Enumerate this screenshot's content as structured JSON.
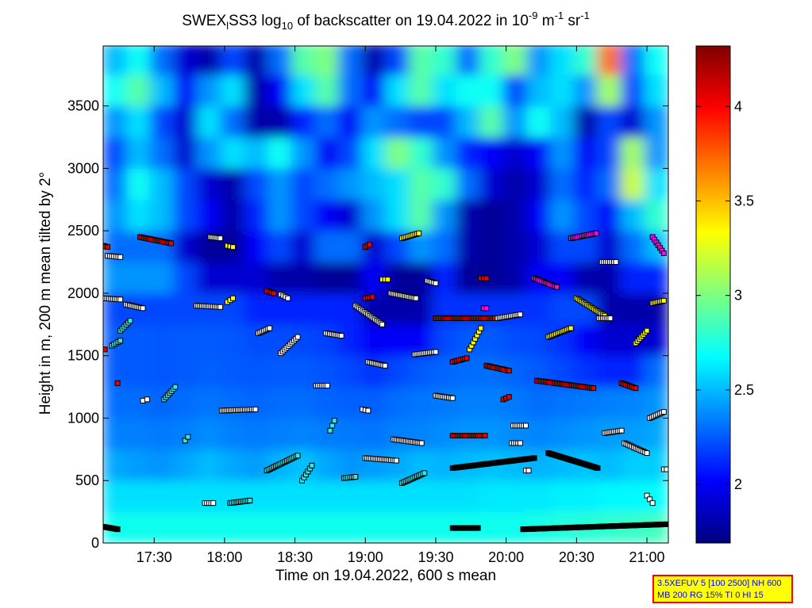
{
  "title": {
    "p1": "SWEX",
    "sub1": "l",
    "p2": "SS3 log",
    "sub2": "10",
    "p3": " of backscatter on 19.04.2022 in 10",
    "sup1": "-9",
    "p4": " m",
    "sup2": "-1",
    "p5": " sr",
    "sup3": "-1"
  },
  "infobox": {
    "line1": "3.5XEFUV 5 [100 2500] NH 600",
    "line2": "MB 200 RG 15% TI 0 HI 15"
  },
  "chart_data": {
    "type": "heatmap",
    "xlabel": "Time on 19.04.2022, 600 s mean",
    "ylabel": "Height in m, 200 m mean tilted by 2°",
    "xlim_hours": [
      17.138,
      21.152
    ],
    "ylim": [
      0,
      3980
    ],
    "xticks": [
      {
        "v": 17.5,
        "label": "17:30"
      },
      {
        "v": 18.0,
        "label": "18:00"
      },
      {
        "v": 18.5,
        "label": "18:30"
      },
      {
        "v": 19.0,
        "label": "19:00"
      },
      {
        "v": 19.5,
        "label": "19:30"
      },
      {
        "v": 20.0,
        "label": "20:00"
      },
      {
        "v": 20.5,
        "label": "20:30"
      },
      {
        "v": 21.0,
        "label": "21:00"
      }
    ],
    "yticks": [
      0,
      500,
      1000,
      1500,
      2000,
      2500,
      3000,
      3500
    ],
    "colorbar": {
      "clim": [
        1.69,
        4.32
      ],
      "ticks": [
        2,
        2.5,
        3,
        3.5,
        4
      ],
      "tick_labels": [
        "2",
        "2.5",
        "3",
        "3.5",
        "4"
      ],
      "colormap": "jet"
    },
    "grid_time_step_hours": 0.1672,
    "grid_height_step_m": 250,
    "grid_rows_bottom_to_top": [
      [
        2.72,
        2.72,
        2.72,
        2.72,
        2.72,
        2.72,
        2.72,
        2.72,
        2.72,
        2.72,
        2.72,
        2.72,
        2.72,
        2.72,
        2.72,
        2.72,
        2.72,
        2.72,
        2.74,
        2.76,
        2.78,
        2.8,
        2.82,
        2.84
      ],
      [
        2.6,
        2.6,
        2.6,
        2.6,
        2.6,
        2.6,
        2.6,
        2.6,
        2.6,
        2.6,
        2.6,
        2.6,
        2.6,
        2.6,
        2.6,
        2.6,
        2.62,
        2.62,
        2.62,
        2.64,
        2.64,
        2.66,
        2.66,
        2.68
      ],
      [
        2.45,
        2.42,
        2.4,
        2.45,
        2.5,
        2.45,
        2.42,
        2.48,
        2.52,
        2.45,
        2.4,
        2.42,
        2.45,
        2.5,
        2.48,
        2.5,
        2.52,
        2.5,
        2.48,
        2.5,
        2.52,
        2.5,
        2.55,
        2.55
      ],
      [
        2.35,
        2.35,
        2.33,
        2.35,
        2.38,
        2.35,
        2.33,
        2.35,
        2.36,
        2.34,
        2.33,
        2.32,
        2.35,
        2.36,
        2.38,
        2.4,
        2.4,
        2.38,
        2.36,
        2.38,
        2.4,
        2.42,
        2.42,
        2.45
      ],
      [
        2.3,
        2.3,
        2.28,
        2.3,
        2.32,
        2.3,
        2.28,
        2.3,
        2.3,
        2.28,
        2.27,
        2.26,
        2.3,
        2.32,
        2.33,
        2.35,
        2.35,
        2.33,
        2.3,
        2.32,
        2.33,
        2.35,
        2.36,
        2.4
      ],
      [
        2.25,
        2.25,
        2.24,
        2.25,
        2.26,
        2.25,
        2.24,
        2.25,
        2.25,
        2.23,
        2.2,
        2.15,
        2.2,
        2.25,
        2.28,
        2.3,
        2.3,
        2.28,
        2.25,
        2.2,
        2.15,
        2.1,
        2.1,
        2.3
      ],
      [
        2.25,
        2.25,
        2.24,
        2.25,
        2.25,
        2.24,
        2.22,
        2.22,
        2.2,
        2.18,
        2.1,
        2.0,
        2.0,
        2.0,
        2.2,
        2.25,
        2.25,
        2.22,
        2.2,
        2.15,
        2.0,
        1.9,
        1.9,
        1.9
      ],
      [
        2.2,
        2.2,
        2.2,
        2.2,
        2.2,
        2.2,
        2.1,
        2.1,
        2.1,
        2.1,
        2.1,
        1.8,
        1.8,
        1.8,
        2.15,
        2.15,
        2.15,
        2.15,
        2.15,
        2.2,
        2.2,
        1.8,
        1.8,
        1.8
      ],
      [
        2.4,
        2.4,
        2.4,
        2.2,
        1.9,
        1.9,
        1.9,
        1.8,
        1.8,
        1.75,
        1.75,
        2.0,
        1.75,
        1.75,
        2.1,
        1.75,
        1.75,
        1.8,
        2.0,
        2.0,
        1.8,
        1.8,
        2.1,
        2.1
      ],
      [
        2.3,
        2.3,
        2.3,
        1.9,
        1.75,
        1.75,
        2.0,
        2.2,
        1.9,
        2.3,
        2.3,
        1.9,
        2.2,
        2.4,
        2.3,
        1.8,
        1.75,
        1.8,
        1.9,
        2.2,
        2.2,
        1.9,
        2.3,
        2.5
      ],
      [
        2.4,
        2.6,
        2.5,
        2.2,
        2.0,
        1.8,
        2.1,
        2.4,
        2.2,
        2.0,
        1.9,
        2.4,
        2.6,
        2.9,
        2.4,
        1.8,
        1.75,
        1.8,
        2.0,
        2.4,
        2.2,
        2.0,
        2.5,
        2.8
      ],
      [
        2.3,
        2.7,
        2.5,
        2.2,
        1.9,
        1.8,
        2.2,
        2.4,
        2.2,
        2.3,
        2.4,
        2.5,
        2.6,
        2.9,
        2.8,
        2.3,
        1.9,
        1.8,
        1.9,
        2.3,
        2.1,
        2.3,
        3.2,
        2.6
      ],
      [
        2.2,
        2.5,
        2.3,
        1.9,
        2.4,
        2.6,
        2.5,
        2.7,
        2.4,
        2.0,
        2.2,
        2.6,
        3.0,
        2.8,
        2.4,
        2.1,
        2.0,
        1.9,
        2.0,
        2.4,
        2.0,
        2.2,
        3.1,
        2.4
      ],
      [
        2.4,
        2.6,
        2.2,
        1.9,
        2.6,
        2.3,
        1.8,
        1.8,
        2.1,
        2.3,
        2.0,
        2.4,
        2.3,
        2.2,
        2.2,
        2.5,
        2.9,
        2.4,
        2.7,
        2.5,
        1.8,
        2.2,
        1.9,
        2.4
      ],
      [
        2.7,
        2.9,
        2.5,
        2.0,
        2.4,
        2.6,
        1.8,
        2.0,
        2.6,
        2.9,
        2.3,
        2.0,
        2.6,
        2.9,
        2.6,
        2.7,
        2.7,
        2.2,
        2.5,
        2.6,
        2.4,
        3.1,
        2.2,
        2.6
      ],
      [
        2.5,
        2.7,
        2.3,
        1.9,
        1.8,
        2.2,
        1.8,
        2.3,
        2.9,
        3.0,
        2.3,
        1.8,
        2.2,
        2.9,
        2.8,
        2.3,
        2.8,
        3.0,
        2.4,
        2.6,
        2.8,
        3.7,
        2.3,
        2.7
      ]
    ],
    "marker_colors": {
      "w": "#ffffff",
      "c": "#33e6e6",
      "r": "#e60000",
      "y": "#ffff00",
      "m": "#ff00ff",
      "k": "#000000"
    },
    "layer_markers": [
      [
        17.14,
        17.17,
        2380,
        2370,
        "r"
      ],
      [
        17.17,
        17.26,
        2300,
        2290,
        "w"
      ],
      [
        17.4,
        17.62,
        2450,
        2400,
        "r"
      ],
      [
        17.14,
        17.26,
        1960,
        1950,
        "w"
      ],
      [
        17.3,
        17.42,
        1910,
        1880,
        "w"
      ],
      [
        17.26,
        17.33,
        1700,
        1780,
        "c"
      ],
      [
        17.2,
        17.26,
        1580,
        1620,
        "c"
      ],
      [
        17.15,
        17.16,
        1550,
        1550,
        "r"
      ],
      [
        17.24,
        17.24,
        1280,
        1280,
        "r"
      ],
      [
        17.9,
        17.97,
        2450,
        2440,
        "w"
      ],
      [
        18.02,
        18.06,
        2380,
        2370,
        "y"
      ],
      [
        17.8,
        17.97,
        1900,
        1890,
        "w"
      ],
      [
        18.02,
        18.06,
        1930,
        1960,
        "y"
      ],
      [
        17.57,
        17.65,
        1150,
        1250,
        "c"
      ],
      [
        17.42,
        17.45,
        1140,
        1150,
        "w"
      ],
      [
        17.72,
        17.74,
        820,
        850,
        "c"
      ],
      [
        17.98,
        18.22,
        1060,
        1070,
        "w"
      ],
      [
        18.04,
        18.18,
        320,
        340,
        "c"
      ],
      [
        17.86,
        17.92,
        320,
        320,
        "w"
      ],
      [
        18.3,
        18.52,
        580,
        700,
        "c"
      ],
      [
        18.55,
        18.62,
        500,
        620,
        "c"
      ],
      [
        18.85,
        18.93,
        520,
        530,
        "c"
      ],
      [
        18.3,
        18.35,
        2020,
        2000,
        "r"
      ],
      [
        18.4,
        18.45,
        1990,
        1960,
        "w"
      ],
      [
        18.24,
        18.32,
        1680,
        1720,
        "w"
      ],
      [
        18.4,
        18.52,
        1520,
        1650,
        "w"
      ],
      [
        18.65,
        18.73,
        1260,
        1260,
        "w"
      ],
      [
        18.75,
        18.78,
        900,
        980,
        "c"
      ],
      [
        18.72,
        18.83,
        1680,
        1660,
        "w"
      ],
      [
        19.0,
        19.03,
        2370,
        2390,
        "r"
      ],
      [
        19.0,
        19.05,
        1960,
        1970,
        "r"
      ],
      [
        18.93,
        19.12,
        1900,
        1750,
        "w"
      ],
      [
        19.02,
        19.14,
        1450,
        1420,
        "w"
      ],
      [
        18.98,
        19.02,
        1070,
        1060,
        "w"
      ],
      [
        19.0,
        19.22,
        680,
        660,
        "w"
      ],
      [
        19.26,
        19.42,
        480,
        560,
        "c"
      ],
      [
        19.2,
        19.4,
        830,
        800,
        "w"
      ],
      [
        19.26,
        19.38,
        2440,
        2480,
        "y"
      ],
      [
        19.12,
        19.16,
        2110,
        2110,
        "y"
      ],
      [
        19.18,
        19.36,
        2000,
        1960,
        "w"
      ],
      [
        19.44,
        19.5,
        2100,
        2080,
        "w"
      ],
      [
        19.5,
        19.92,
        1800,
        1800,
        "r"
      ],
      [
        19.35,
        19.5,
        1510,
        1530,
        "w"
      ],
      [
        19.5,
        19.62,
        1180,
        1160,
        "w"
      ],
      [
        19.62,
        19.72,
        1450,
        1480,
        "r"
      ],
      [
        19.74,
        19.82,
        1550,
        1720,
        "y"
      ],
      [
        19.62,
        19.85,
        860,
        860,
        "r"
      ],
      [
        19.62,
        20.2,
        600,
        680,
        "k"
      ],
      [
        19.82,
        19.86,
        2120,
        2120,
        "r"
      ],
      [
        19.84,
        19.86,
        1880,
        1880,
        "m"
      ],
      [
        19.86,
        20.02,
        1420,
        1380,
        "r"
      ],
      [
        19.94,
        20.1,
        1800,
        1830,
        "w"
      ],
      [
        20.05,
        20.14,
        940,
        940,
        "w"
      ],
      [
        20.04,
        20.1,
        800,
        800,
        "w"
      ],
      [
        20.14,
        20.16,
        580,
        580,
        "w"
      ],
      [
        19.98,
        20.02,
        1150,
        1170,
        "r"
      ],
      [
        20.2,
        20.36,
        2120,
        2050,
        "m"
      ],
      [
        20.3,
        20.65,
        720,
        600,
        "k"
      ],
      [
        20.22,
        20.62,
        1300,
        1240,
        "r"
      ],
      [
        20.3,
        20.46,
        1650,
        1720,
        "y"
      ],
      [
        20.46,
        20.64,
        2440,
        2480,
        "m"
      ],
      [
        20.5,
        20.7,
        1960,
        1820,
        "y"
      ],
      [
        20.66,
        20.74,
        1800,
        1800,
        "w"
      ],
      [
        20.68,
        20.78,
        2250,
        2250,
        "w"
      ],
      [
        20.7,
        20.82,
        880,
        900,
        "w"
      ],
      [
        20.84,
        21.0,
        800,
        720,
        "w"
      ],
      [
        20.82,
        20.92,
        1280,
        1240,
        "r"
      ],
      [
        20.92,
        21.0,
        1600,
        1700,
        "y"
      ],
      [
        21.04,
        21.12,
        1920,
        1940,
        "y"
      ],
      [
        21.02,
        21.12,
        1000,
        1050,
        "w"
      ],
      [
        21.04,
        21.12,
        2450,
        2320,
        "m"
      ],
      [
        21.0,
        21.04,
        380,
        320,
        "w"
      ],
      [
        21.12,
        21.14,
        590,
        590,
        "w"
      ],
      [
        19.62,
        19.8,
        120,
        120,
        "k"
      ],
      [
        20.12,
        21.14,
        110,
        150,
        "k"
      ],
      [
        17.14,
        17.24,
        130,
        110,
        "k"
      ]
    ]
  }
}
